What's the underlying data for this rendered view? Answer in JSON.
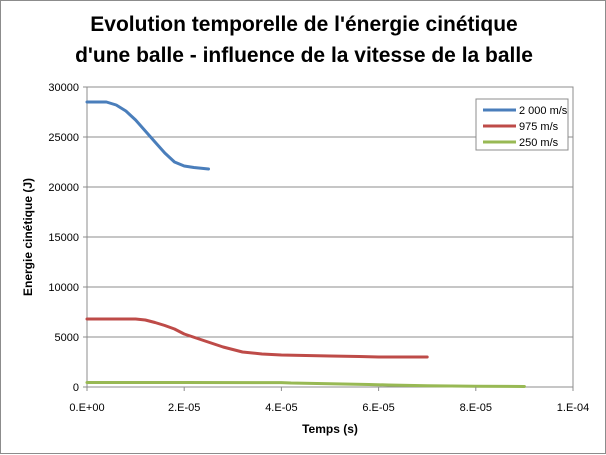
{
  "chart_data": {
    "type": "line",
    "title": [
      "Evolution temporelle de l'énergie cinétique",
      "d'une balle - influence de la vitesse de la balle"
    ],
    "xlabel": "Temps (s)",
    "ylabel": "Energie cinétique (J)",
    "xlim": [
      0,
      0.0001
    ],
    "ylim": [
      0,
      30000
    ],
    "xticks": [
      0,
      2e-05,
      4e-05,
      6e-05,
      8e-05,
      0.0001
    ],
    "xtick_labels": [
      "0.E+00",
      "2.E-05",
      "4.E-05",
      "6.E-05",
      "8.E-05",
      "1.E-04"
    ],
    "yticks": [
      0,
      5000,
      10000,
      15000,
      20000,
      25000,
      30000
    ],
    "ytick_labels": [
      "0",
      "5000",
      "10000",
      "15000",
      "20000",
      "25000",
      "30000"
    ],
    "grid": true,
    "legend_position": "top-right",
    "series": [
      {
        "name": "2 000 m/s",
        "color": "#4a7ebb",
        "points": [
          [
            0,
            28500
          ],
          [
            4e-06,
            28500
          ],
          [
            6e-06,
            28200
          ],
          [
            8e-06,
            27600
          ],
          [
            1e-05,
            26700
          ],
          [
            1.2e-05,
            25600
          ],
          [
            1.4e-05,
            24500
          ],
          [
            1.6e-05,
            23400
          ],
          [
            1.8e-05,
            22500
          ],
          [
            2e-05,
            22100
          ],
          [
            2.2e-05,
            21950
          ],
          [
            2.5e-05,
            21800
          ]
        ]
      },
      {
        "name": "975 m/s",
        "color": "#be4b48",
        "points": [
          [
            0,
            6800
          ],
          [
            1e-05,
            6800
          ],
          [
            1.2e-05,
            6700
          ],
          [
            1.4e-05,
            6450
          ],
          [
            1.6e-05,
            6150
          ],
          [
            1.8e-05,
            5800
          ],
          [
            2e-05,
            5300
          ],
          [
            2.4e-05,
            4650
          ],
          [
            2.8e-05,
            4000
          ],
          [
            3.2e-05,
            3500
          ],
          [
            3.6e-05,
            3300
          ],
          [
            4e-05,
            3200
          ],
          [
            4.5e-05,
            3150
          ],
          [
            5e-05,
            3100
          ],
          [
            5.6e-05,
            3050
          ],
          [
            6e-05,
            3000
          ],
          [
            6.5e-05,
            3000
          ],
          [
            7e-05,
            3000
          ]
        ]
      },
      {
        "name": "250 m/s",
        "color": "#98b954",
        "points": [
          [
            0,
            450
          ],
          [
            2e-05,
            450
          ],
          [
            4e-05,
            440
          ],
          [
            4.2e-05,
            400
          ],
          [
            5e-05,
            330
          ],
          [
            5.8e-05,
            250
          ],
          [
            6.2e-05,
            200
          ],
          [
            7e-05,
            130
          ],
          [
            8e-05,
            80
          ],
          [
            9e-05,
            50
          ]
        ]
      }
    ]
  }
}
